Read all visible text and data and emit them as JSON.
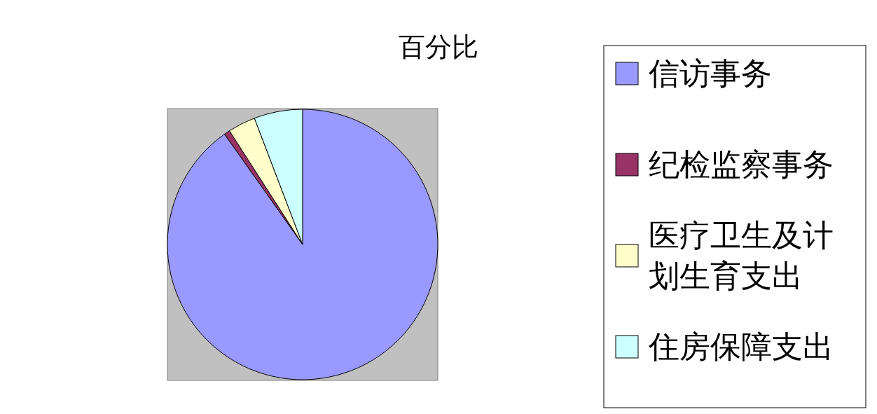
{
  "chart_data": {
    "type": "pie",
    "title": "百分比",
    "legend": "right",
    "categories": [
      "信访事务",
      "纪检监察事务",
      "医疗卫生及计划生育支出",
      "住房保障支出"
    ],
    "values": [
      90.2,
      0.7,
      3.3,
      5.8
    ],
    "colors": [
      "#9999ff",
      "#993366",
      "#ffffcc",
      "#ccffff"
    ]
  }
}
